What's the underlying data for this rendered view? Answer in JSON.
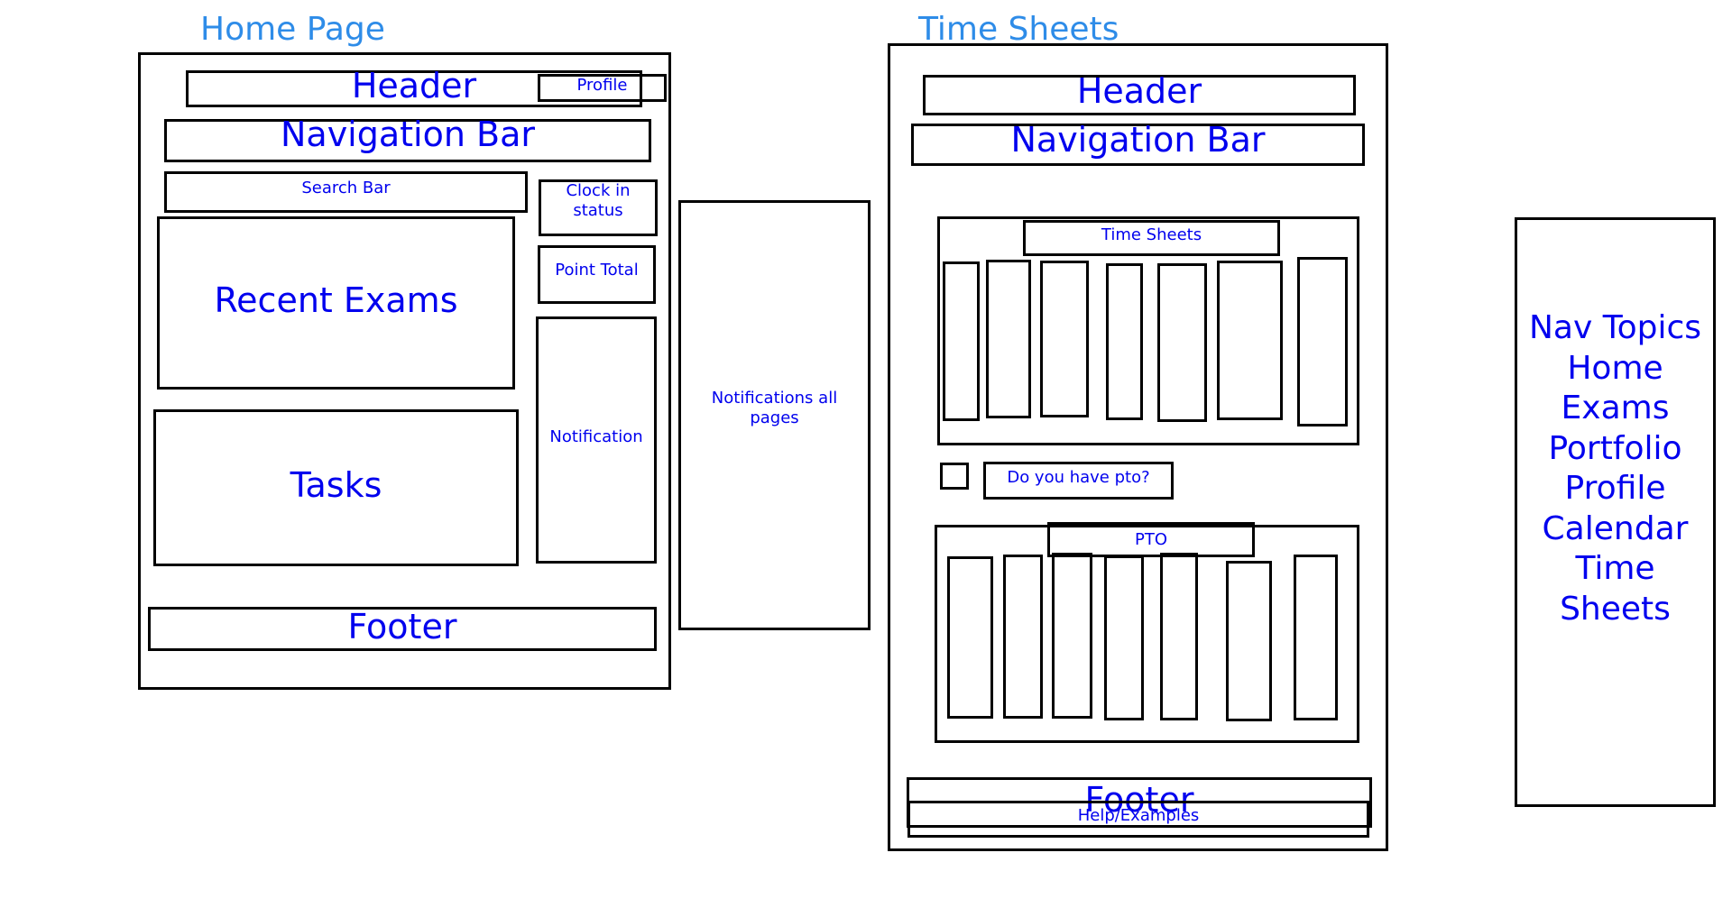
{
  "home_page": {
    "title": "Home Page",
    "header": "Header",
    "profile": "Profile",
    "navigation_bar": "Navigation Bar",
    "search_bar": "Search Bar",
    "clock_in_status_line1": "Clock in",
    "clock_in_status_line2": "status",
    "point_total": "Point Total",
    "recent_exams": "Recent Exams",
    "tasks": "Tasks",
    "notification": "Notification",
    "footer": "Footer"
  },
  "notifications_panel": {
    "line1": "Notifications all",
    "line2": "pages"
  },
  "time_sheets_page": {
    "title": "Time Sheets",
    "header": "Header",
    "navigation_bar": "Navigation Bar",
    "time_sheets_label": "Time Sheets",
    "pto_question": "Do you have pto?",
    "pto_label": "PTO",
    "footer": "Footer",
    "help_examples": "Help/Examples"
  },
  "nav_topics": {
    "items": [
      "Nav Topics",
      "Home",
      "Exams",
      "Portfolio",
      "Profile",
      "Calendar",
      "Time",
      "Sheets"
    ]
  }
}
